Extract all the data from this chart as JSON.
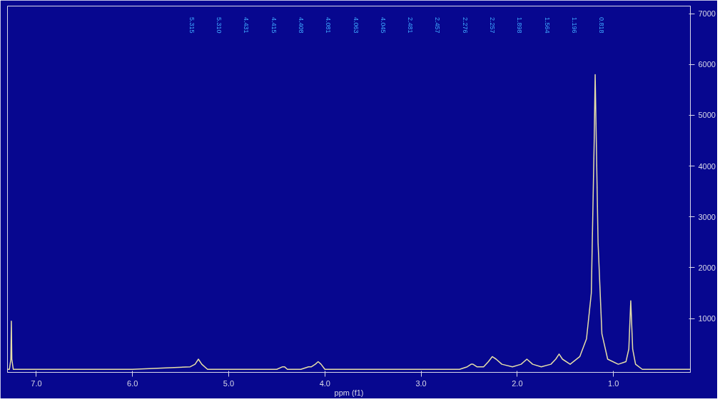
{
  "chart_data": {
    "type": "line",
    "xlabel": "ppm (f1)",
    "xlim": [
      7.3,
      0.2
    ],
    "xticks": [
      {
        "value": 7,
        "label": "7.0"
      },
      {
        "value": 6,
        "label": "6.0"
      },
      {
        "value": 5,
        "label": "5.0"
      },
      {
        "value": 4,
        "label": "4.0"
      },
      {
        "value": 3,
        "label": "3.0"
      },
      {
        "value": 2,
        "label": "2.0"
      },
      {
        "value": 1,
        "label": "1.0"
      }
    ],
    "ylim": [
      -60,
      7150
    ],
    "yticks": [
      1000,
      2000,
      3000,
      4000,
      5000,
      6000,
      7000
    ],
    "grid": false,
    "marker": "none",
    "line_style": "solid",
    "series": [
      {
        "color": "#e6dfa8",
        "x": [
          7.3,
          7.28,
          7.265,
          7.26,
          7.255,
          7.24,
          6.0,
          5.4,
          5.35,
          5.315,
          5.28,
          5.22,
          4.5,
          4.44,
          4.42,
          4.39,
          4.25,
          4.17,
          4.14,
          4.1,
          4.07,
          4.04,
          4.0,
          2.6,
          2.52,
          2.48,
          2.46,
          2.42,
          2.35,
          2.3,
          2.26,
          2.22,
          2.16,
          2.05,
          1.96,
          1.9,
          1.84,
          1.75,
          1.65,
          1.6,
          1.565,
          1.53,
          1.45,
          1.35,
          1.28,
          1.23,
          1.2,
          1.19,
          1.16,
          1.12,
          1.06,
          0.95,
          0.87,
          0.84,
          0.82,
          0.8,
          0.77,
          0.7,
          0.2
        ],
        "values": [
          0,
          0,
          200,
          950,
          200,
          0,
          0,
          50,
          100,
          200,
          100,
          0,
          0,
          50,
          50,
          0,
          0,
          50,
          50,
          100,
          150,
          100,
          0,
          0,
          50,
          100,
          100,
          50,
          50,
          150,
          250,
          200,
          100,
          50,
          100,
          200,
          100,
          50,
          100,
          200,
          300,
          200,
          100,
          250,
          600,
          1500,
          4500,
          5800,
          2500,
          700,
          200,
          100,
          150,
          400,
          1350,
          400,
          100,
          0,
          0
        ]
      }
    ],
    "annotations": [
      "5.315",
      "5.310",
      "4.431",
      "4.415",
      "4.408",
      "4.081",
      "4.063",
      "4.045",
      "2.481",
      "2.457",
      "2.276",
      "2.257",
      "1.898",
      "1.564",
      "1.196",
      "0.818"
    ]
  }
}
